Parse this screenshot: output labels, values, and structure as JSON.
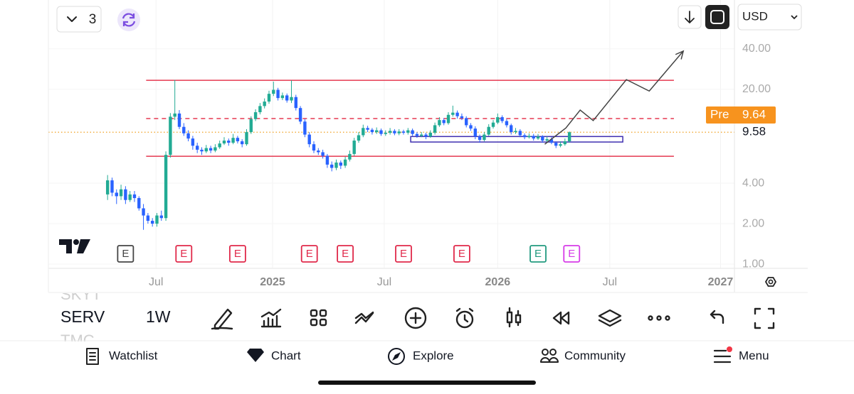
{
  "top_bar": {
    "compare_count": "3",
    "currency": "USD"
  },
  "chart_data": {
    "type": "candlestick",
    "x": [
      0,
      1,
      2,
      3,
      4,
      5,
      6,
      7,
      8,
      9,
      10,
      11,
      12,
      13,
      14,
      15,
      16,
      17,
      18,
      19,
      20,
      21,
      22,
      23,
      24,
      25,
      26,
      27,
      28,
      29,
      30,
      31,
      32,
      33,
      34,
      35,
      36,
      37,
      38,
      39,
      40,
      41,
      42,
      43,
      44,
      45,
      46,
      47,
      48,
      49,
      50,
      51,
      52,
      53,
      54,
      55,
      56,
      57,
      58,
      59,
      60,
      61,
      62,
      63,
      64,
      65,
      66,
      67,
      68,
      69,
      70,
      71,
      72,
      73,
      74,
      75,
      76,
      77,
      78,
      79,
      80,
      81,
      82,
      83,
      84,
      85,
      86,
      87,
      88,
      89,
      90,
      91,
      92,
      93,
      94,
      95,
      96,
      97,
      98,
      99,
      100,
      101,
      102,
      103
    ],
    "ohlc": [
      [
        3.3,
        4.6,
        3.0,
        4.2
      ],
      [
        4.2,
        4.4,
        3.2,
        3.4
      ],
      [
        3.4,
        3.6,
        2.8,
        3.2
      ],
      [
        3.2,
        3.9,
        3.0,
        3.6
      ],
      [
        3.6,
        3.8,
        2.8,
        3.0
      ],
      [
        3.0,
        3.5,
        2.9,
        3.3
      ],
      [
        3.3,
        3.5,
        2.9,
        3.1
      ],
      [
        3.1,
        3.2,
        2.5,
        2.6
      ],
      [
        2.6,
        2.8,
        1.8,
        2.3
      ],
      [
        2.3,
        2.4,
        2.0,
        2.1
      ],
      [
        2.1,
        2.2,
        1.9,
        2.0
      ],
      [
        2.0,
        2.4,
        1.9,
        2.3
      ],
      [
        2.3,
        2.5,
        2.1,
        2.2
      ],
      [
        2.2,
        6.9,
        2.1,
        6.5
      ],
      [
        6.5,
        13.3,
        6.2,
        12.5
      ],
      [
        12.5,
        23.5,
        11.8,
        13.2
      ],
      [
        13.2,
        14.0,
        10.1,
        10.5
      ],
      [
        10.5,
        11.2,
        9.0,
        9.4
      ],
      [
        9.4,
        9.9,
        8.2,
        8.6
      ],
      [
        8.6,
        9.0,
        7.1,
        7.6
      ],
      [
        7.6,
        8.0,
        6.7,
        7.1
      ],
      [
        7.1,
        7.4,
        6.5,
        6.9
      ],
      [
        6.9,
        7.7,
        6.7,
        7.3
      ],
      [
        7.3,
        7.6,
        6.7,
        7.0
      ],
      [
        7.0,
        7.8,
        6.8,
        7.4
      ],
      [
        7.4,
        8.3,
        7.2,
        7.9
      ],
      [
        7.9,
        8.8,
        7.7,
        8.3
      ],
      [
        8.3,
        8.6,
        7.6,
        8.0
      ],
      [
        8.0,
        9.3,
        7.8,
        8.7
      ],
      [
        8.7,
        9.0,
        7.9,
        8.2
      ],
      [
        8.2,
        8.5,
        7.4,
        7.8
      ],
      [
        7.8,
        10.1,
        7.6,
        9.6
      ],
      [
        9.6,
        12.6,
        9.3,
        12.0
      ],
      [
        12.0,
        14.2,
        11.6,
        13.5
      ],
      [
        13.5,
        15.8,
        13.0,
        15.0
      ],
      [
        15.0,
        17.1,
        14.4,
        16.2
      ],
      [
        16.2,
        19.5,
        15.6,
        18.5
      ],
      [
        18.5,
        22.8,
        17.8,
        19.8
      ],
      [
        19.8,
        20.5,
        16.5,
        17.2
      ],
      [
        17.2,
        18.9,
        16.6,
        18.0
      ],
      [
        18.0,
        18.6,
        15.9,
        16.5
      ],
      [
        16.5,
        23.3,
        15.8,
        17.5
      ],
      [
        17.5,
        18.2,
        13.9,
        14.5
      ],
      [
        14.5,
        15.0,
        11.0,
        11.5
      ],
      [
        11.5,
        12.0,
        8.8,
        9.2
      ],
      [
        9.2,
        9.6,
        7.4,
        7.8
      ],
      [
        7.8,
        8.2,
        6.7,
        7.0
      ],
      [
        7.0,
        7.3,
        6.5,
        6.8
      ],
      [
        6.8,
        7.1,
        6.1,
        6.4
      ],
      [
        6.4,
        6.6,
        5.2,
        5.5
      ],
      [
        5.5,
        5.8,
        4.9,
        5.2
      ],
      [
        5.2,
        6.0,
        5.0,
        5.7
      ],
      [
        5.7,
        5.9,
        5.1,
        5.4
      ],
      [
        5.4,
        6.3,
        5.2,
        6.0
      ],
      [
        6.0,
        7.0,
        5.8,
        6.6
      ],
      [
        6.6,
        8.7,
        6.4,
        8.3
      ],
      [
        8.3,
        9.6,
        8.0,
        9.1
      ],
      [
        9.1,
        10.9,
        8.8,
        10.3
      ],
      [
        10.3,
        10.7,
        9.6,
        10.0
      ],
      [
        10.0,
        10.3,
        9.2,
        9.6
      ],
      [
        9.6,
        10.4,
        9.3,
        9.9
      ],
      [
        9.9,
        10.2,
        9.0,
        9.3
      ],
      [
        9.3,
        9.9,
        9.0,
        9.5
      ],
      [
        9.5,
        10.3,
        9.2,
        9.8
      ],
      [
        9.8,
        10.1,
        9.1,
        9.4
      ],
      [
        9.4,
        10.1,
        9.1,
        9.7
      ],
      [
        9.7,
        10.0,
        9.2,
        9.5
      ],
      [
        9.5,
        10.3,
        9.2,
        9.9
      ],
      [
        9.9,
        10.2,
        9.0,
        9.3
      ],
      [
        9.3,
        9.6,
        8.7,
        9.0
      ],
      [
        9.0,
        9.6,
        8.8,
        9.2
      ],
      [
        9.2,
        9.5,
        8.5,
        8.9
      ],
      [
        8.9,
        9.9,
        8.7,
        9.5
      ],
      [
        9.5,
        11.3,
        9.2,
        10.8
      ],
      [
        10.8,
        12.4,
        10.5,
        11.8
      ],
      [
        11.8,
        12.2,
        10.8,
        11.2
      ],
      [
        11.2,
        13.5,
        10.9,
        12.9
      ],
      [
        12.9,
        15.1,
        12.5,
        13.4
      ],
      [
        13.4,
        13.9,
        12.1,
        12.6
      ],
      [
        12.6,
        13.2,
        11.8,
        12.2
      ],
      [
        12.2,
        12.6,
        10.4,
        10.8
      ],
      [
        10.8,
        11.2,
        9.8,
        10.2
      ],
      [
        10.2,
        10.6,
        8.5,
        8.9
      ],
      [
        8.9,
        9.2,
        8.0,
        8.4
      ],
      [
        8.4,
        9.6,
        8.2,
        9.2
      ],
      [
        9.2,
        11.0,
        9.0,
        10.5
      ],
      [
        10.5,
        11.8,
        10.2,
        11.3
      ],
      [
        11.3,
        13.2,
        11.0,
        12.4
      ],
      [
        12.4,
        12.8,
        11.2,
        11.6
      ],
      [
        11.6,
        12.0,
        10.4,
        10.8
      ],
      [
        10.8,
        11.1,
        9.2,
        9.6
      ],
      [
        9.6,
        10.3,
        9.3,
        9.8
      ],
      [
        9.8,
        10.1,
        8.8,
        9.1
      ],
      [
        9.1,
        9.4,
        8.5,
        8.8
      ],
      [
        8.8,
        9.4,
        8.6,
        9.0
      ],
      [
        9.0,
        9.3,
        8.3,
        8.6
      ],
      [
        8.6,
        9.3,
        8.4,
        8.9
      ],
      [
        8.9,
        9.1,
        8.0,
        8.3
      ],
      [
        8.3,
        8.9,
        8.1,
        8.5
      ],
      [
        8.5,
        8.8,
        7.8,
        8.0
      ],
      [
        8.0,
        8.2,
        7.3,
        7.6
      ],
      [
        7.6,
        8.2,
        7.4,
        7.8
      ],
      [
        7.8,
        8.6,
        7.6,
        8.2
      ],
      [
        8.2,
        9.7,
        8.0,
        9.58
      ]
    ],
    "up_color": "#22ab94",
    "down_color": "#2962ff",
    "xlim": [
      -13.2,
      139.8
    ],
    "xticks": [
      {
        "value": 10.8,
        "label": "Jul"
      },
      {
        "value": 36.8,
        "label": "2025"
      },
      {
        "value": 61.7,
        "label": "Jul"
      },
      {
        "value": 87,
        "label": "2026"
      },
      {
        "value": 112,
        "label": "Jul"
      },
      {
        "value": 136.7,
        "label": "2027"
      }
    ],
    "ylim": [
      0.93,
      53.4
    ],
    "yticks": [
      {
        "value": 40,
        "label": "40.00"
      },
      {
        "value": 20,
        "label": "20.00"
      },
      {
        "value": 4,
        "label": "4.00"
      },
      {
        "value": 2,
        "label": "2.00"
      },
      {
        "value": 1,
        "label": "1.00"
      }
    ],
    "log_scale": true,
    "grid": true,
    "last_price": 9.58,
    "premarket": {
      "label": "Pre",
      "value": 9.64
    },
    "levels": [
      {
        "value": 23.3,
        "from": 8.6,
        "to": 126.3,
        "style": "solid",
        "color": "#e53950"
      },
      {
        "value": 12.1,
        "from": 8.6,
        "to": 126.3,
        "style": "dashed",
        "color": "#e53950"
      },
      {
        "value": 6.35,
        "from": 8.6,
        "to": 126.3,
        "style": "solid",
        "color": "#e53950"
      }
    ],
    "zone": {
      "from": 67.6,
      "to": 114.9,
      "low": 8.1,
      "high": 8.9,
      "color": "#3f2fb0"
    },
    "path": {
      "x": [
        97.5,
        102.2,
        105.4,
        108.3,
        115.7,
        120.8,
        128.4
      ],
      "y": [
        7.8,
        10.3,
        14.0,
        11.7,
        23.6,
        19.4,
        38.5
      ],
      "color": "#444"
    },
    "events": [
      {
        "x": 4,
        "label": "E",
        "color": "#444444"
      },
      {
        "x": 17,
        "label": "E",
        "color": "#e0294a"
      },
      {
        "x": 29,
        "label": "E",
        "color": "#e0294a"
      },
      {
        "x": 45,
        "label": "E",
        "color": "#e0294a"
      },
      {
        "x": 53,
        "label": "E",
        "color": "#e0294a"
      },
      {
        "x": 66,
        "label": "E",
        "color": "#e0294a"
      },
      {
        "x": 79,
        "label": "E",
        "color": "#e0294a"
      },
      {
        "x": 96,
        "label": "E",
        "color": "#22997f"
      },
      {
        "x": 103.5,
        "label": "E",
        "color": "#d63be8"
      }
    ]
  },
  "toolbar": {
    "symbol": "SERV",
    "interval": "1W",
    "watchlist_above": "SKYT",
    "watchlist_below": "TMC"
  },
  "nav": [
    "Watchlist",
    "Chart",
    "Explore",
    "Community",
    "Menu"
  ]
}
